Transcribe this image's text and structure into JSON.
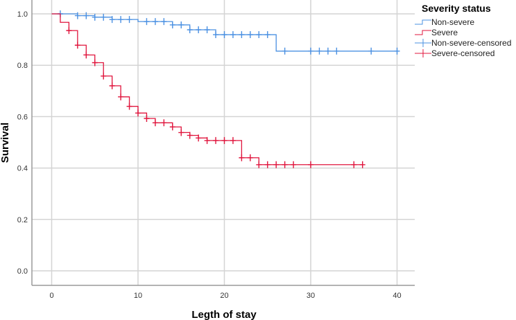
{
  "chart_data": {
    "type": "line",
    "subtype": "kaplan-meier step",
    "title": "",
    "xlabel": "Legth of stay",
    "ylabel": "Survival",
    "xlim": [
      -2,
      42
    ],
    "ylim": [
      -0.06,
      1.04
    ],
    "xticks": [
      0,
      10,
      20,
      30,
      40
    ],
    "yticks": [
      0.0,
      0.2,
      0.4,
      0.6,
      0.8,
      1.0
    ],
    "xtick_labels": [
      "0",
      "10",
      "20",
      "30",
      "40"
    ],
    "ytick_labels": [
      "0.0",
      "0.2",
      "0.4",
      "0.6",
      "0.8",
      "1.0"
    ],
    "grid": true,
    "legend_title": "Severity status",
    "legend_position": "right-top",
    "series": [
      {
        "name": "Non-severe",
        "color": "#4a90e2",
        "steps": [
          [
            0,
            1.0
          ],
          [
            3,
            0.993
          ],
          [
            5,
            0.987
          ],
          [
            7,
            0.978
          ],
          [
            10,
            0.97
          ],
          [
            14,
            0.957
          ],
          [
            16,
            0.938
          ],
          [
            19,
            0.919
          ],
          [
            26,
            0.855
          ],
          [
            40,
            0.855
          ]
        ],
        "censored": [
          [
            1,
            1.0
          ],
          [
            3,
            0.993
          ],
          [
            4,
            0.993
          ],
          [
            5,
            0.987
          ],
          [
            6,
            0.987
          ],
          [
            7,
            0.978
          ],
          [
            8,
            0.978
          ],
          [
            9,
            0.978
          ],
          [
            11,
            0.97
          ],
          [
            12,
            0.97
          ],
          [
            13,
            0.97
          ],
          [
            14,
            0.957
          ],
          [
            15,
            0.957
          ],
          [
            16,
            0.938
          ],
          [
            17,
            0.938
          ],
          [
            18,
            0.938
          ],
          [
            19,
            0.919
          ],
          [
            20,
            0.919
          ],
          [
            21,
            0.919
          ],
          [
            22,
            0.919
          ],
          [
            23,
            0.919
          ],
          [
            24,
            0.919
          ],
          [
            25,
            0.919
          ],
          [
            27,
            0.855
          ],
          [
            30,
            0.855
          ],
          [
            31,
            0.855
          ],
          [
            32,
            0.855
          ],
          [
            33,
            0.855
          ],
          [
            37,
            0.855
          ],
          [
            40,
            0.855
          ]
        ]
      },
      {
        "name": "Severe",
        "color": "#e0143c",
        "steps": [
          [
            0,
            1.0
          ],
          [
            1,
            0.967
          ],
          [
            2,
            0.935
          ],
          [
            3,
            0.878
          ],
          [
            4,
            0.84
          ],
          [
            5,
            0.81
          ],
          [
            6,
            0.758
          ],
          [
            7,
            0.72
          ],
          [
            8,
            0.677
          ],
          [
            9,
            0.64
          ],
          [
            10,
            0.614
          ],
          [
            11,
            0.593
          ],
          [
            12,
            0.576
          ],
          [
            14,
            0.56
          ],
          [
            15,
            0.538
          ],
          [
            16,
            0.527
          ],
          [
            17,
            0.517
          ],
          [
            18,
            0.507
          ],
          [
            22,
            0.44
          ],
          [
            24,
            0.413
          ],
          [
            36,
            0.413
          ]
        ],
        "censored": [
          [
            2,
            0.935
          ],
          [
            3,
            0.878
          ],
          [
            4,
            0.84
          ],
          [
            5,
            0.81
          ],
          [
            6,
            0.758
          ],
          [
            7,
            0.72
          ],
          [
            8,
            0.677
          ],
          [
            9,
            0.64
          ],
          [
            10,
            0.614
          ],
          [
            11,
            0.593
          ],
          [
            12,
            0.576
          ],
          [
            13,
            0.576
          ],
          [
            14,
            0.56
          ],
          [
            15,
            0.538
          ],
          [
            16,
            0.527
          ],
          [
            17,
            0.517
          ],
          [
            18,
            0.507
          ],
          [
            19,
            0.507
          ],
          [
            20,
            0.507
          ],
          [
            21,
            0.507
          ],
          [
            22,
            0.44
          ],
          [
            23,
            0.44
          ],
          [
            24,
            0.413
          ],
          [
            25,
            0.413
          ],
          [
            26,
            0.413
          ],
          [
            27,
            0.413
          ],
          [
            28,
            0.413
          ],
          [
            30,
            0.413
          ],
          [
            35,
            0.413
          ],
          [
            36,
            0.413
          ]
        ]
      }
    ]
  },
  "legend": {
    "title": "Severity status",
    "items": [
      {
        "label": "Non-severe",
        "kind": "step",
        "color": "#4a90e2"
      },
      {
        "label": "Severe",
        "kind": "step",
        "color": "#e0143c"
      },
      {
        "label": "Non-severe-censored",
        "kind": "cross",
        "color": "#4a90e2"
      },
      {
        "label": "Severe-censored",
        "kind": "cross",
        "color": "#e0143c"
      }
    ]
  },
  "colors": {
    "grid": "#d4d4d4",
    "axis": "#9a9a9a",
    "non_severe": "#4a90e2",
    "severe": "#e0143c"
  }
}
